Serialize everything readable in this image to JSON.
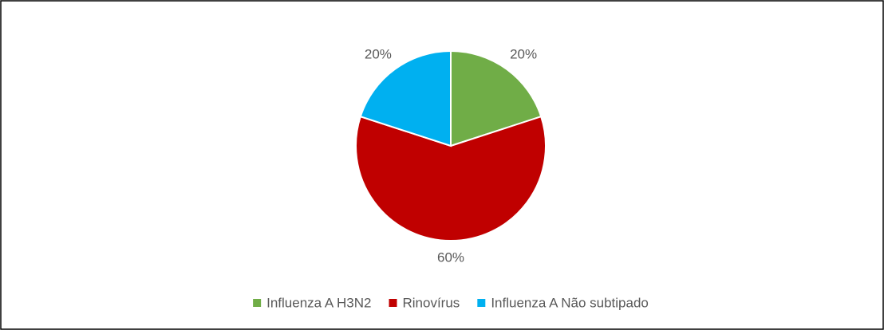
{
  "chart_data": {
    "type": "pie",
    "categories": [
      "Influenza A H3N2",
      "Rinovírus",
      "Influenza A Não subtipado"
    ],
    "values": [
      20,
      60,
      20
    ],
    "value_labels": [
      "20%",
      "60%",
      "20%"
    ],
    "colors": [
      "#70ad47",
      "#c00000",
      "#00b0f0"
    ],
    "legend": "bottom"
  }
}
